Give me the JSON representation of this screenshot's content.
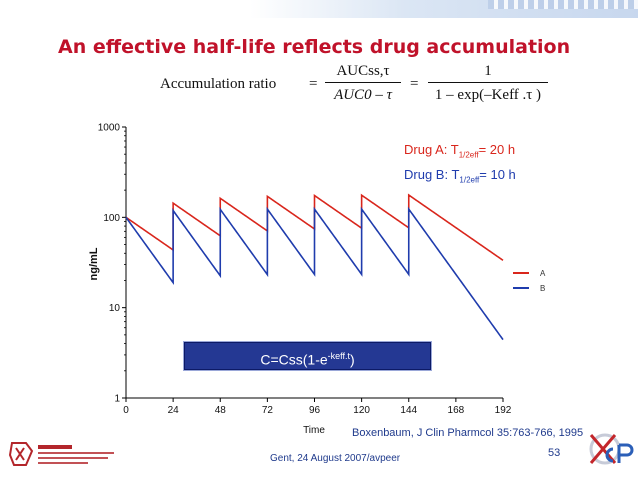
{
  "slide": {
    "title": "An effective half-life reflects drug accumulation",
    "equation": {
      "lhs": "Accumulation ratio",
      "eq": "=",
      "frac1_num": "AUCss,τ",
      "frac1_den": "AUC0 – τ",
      "frac2_num": "1",
      "frac2_den": "1 – exp(–Keff .τ )"
    },
    "drug_a_text": {
      "prefix": "Drug A: T",
      "sub": "1/2eff",
      "suffix": "= 20 h"
    },
    "drug_b_text": {
      "prefix": "Drug B: T",
      "sub": "1/2eff",
      "suffix": "= 10 h"
    },
    "formula": {
      "main": "C=Css(1-e",
      "sup": "-keff.t",
      "close": ")"
    },
    "reference": "Boxenbaum, J Clin Pharmcol 35:763-766, 1995",
    "footer": "Gent, 24 August 2007/avpeer",
    "page_number": "53",
    "colors": {
      "title": "#c0122a",
      "drug_a": "#d9261c",
      "drug_b": "#1f3cad",
      "formula_bg": "#243893",
      "footer": "#1f3a8c"
    },
    "left_logo_icon": "university-seal-icon",
    "right_logo_icon": "ucp-logo-icon"
  },
  "chart_data": {
    "type": "line",
    "xlabel": "Time",
    "ylabel": "ng/mL",
    "x_ticks": [
      "0",
      "24",
      "48",
      "72",
      "96",
      "120",
      "144",
      "168",
      "192"
    ],
    "y_ticks": [
      "1",
      "10",
      "100",
      "1000"
    ],
    "xlim": [
      0,
      192
    ],
    "ylim": [
      1,
      1000
    ],
    "y_scale": "log",
    "grid": false,
    "legend_position": "right",
    "dosing_interval": 24,
    "dosing_times": [
      0,
      24,
      48,
      72,
      96,
      120,
      144
    ],
    "series": [
      {
        "name": "A",
        "color": "#d9261c",
        "half_life": 20,
        "dose": 100
      },
      {
        "name": "B",
        "color": "#1f3cad",
        "half_life": 10,
        "dose": 100
      }
    ]
  }
}
